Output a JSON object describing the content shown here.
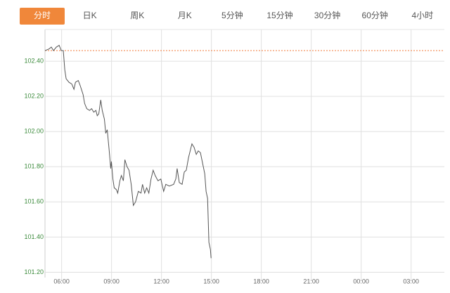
{
  "tabs": [
    "分时",
    "日K",
    "周K",
    "月K",
    "5分钟",
    "15分钟",
    "30分钟",
    "60分钟",
    "4小时"
  ],
  "active_tab": 0,
  "chart_data": {
    "type": "line",
    "color": "#555555",
    "x": [
      5.0,
      5.25,
      5.38,
      5.51,
      5.68,
      5.85,
      5.98,
      6.1,
      6.19,
      6.27,
      6.44,
      6.61,
      6.74,
      6.83,
      7.0,
      7.12,
      7.29,
      7.38,
      7.51,
      7.68,
      7.8,
      7.93,
      8.06,
      8.14,
      8.23,
      8.35,
      8.44,
      8.57,
      8.65,
      8.74,
      8.86,
      8.95,
      8.99,
      9.08,
      9.16,
      9.29,
      9.37,
      9.5,
      9.59,
      9.71,
      9.8,
      9.93,
      10.05,
      10.18,
      10.31,
      10.44,
      10.61,
      10.77,
      10.86,
      10.99,
      11.11,
      11.24,
      11.37,
      11.5,
      11.62,
      11.79,
      11.96,
      12.13,
      12.26,
      12.47,
      12.73,
      12.86,
      12.94,
      13.07,
      13.24,
      13.37,
      13.49,
      13.62,
      13.75,
      13.83,
      13.96,
      14.09,
      14.21,
      14.34,
      14.47,
      14.6,
      14.68,
      14.77,
      14.85,
      14.94,
      14.98
    ],
    "values": [
      102.46,
      102.47,
      102.48,
      102.46,
      102.48,
      102.49,
      102.46,
      102.46,
      102.35,
      102.3,
      102.28,
      102.27,
      102.24,
      102.28,
      102.29,
      102.26,
      102.21,
      102.16,
      102.13,
      102.12,
      102.13,
      102.11,
      102.12,
      102.09,
      102.1,
      102.18,
      102.12,
      102.07,
      101.99,
      102.01,
      101.89,
      101.79,
      101.83,
      101.73,
      101.68,
      101.67,
      101.65,
      101.72,
      101.75,
      101.72,
      101.84,
      101.8,
      101.78,
      101.7,
      101.58,
      101.6,
      101.66,
      101.65,
      101.7,
      101.65,
      101.68,
      101.65,
      101.73,
      101.78,
      101.75,
      101.72,
      101.73,
      101.66,
      101.7,
      101.69,
      101.7,
      101.73,
      101.79,
      101.71,
      101.7,
      101.77,
      101.78,
      101.85,
      101.9,
      101.93,
      101.91,
      101.87,
      101.89,
      101.88,
      101.82,
      101.76,
      101.66,
      101.62,
      101.37,
      101.33,
      101.28
    ],
    "reference_line": {
      "value": 102.46,
      "color": "#f07a3a"
    },
    "xlim": [
      5,
      29
    ],
    "xticks": [
      {
        "value": 6,
        "label": "06:00"
      },
      {
        "value": 9,
        "label": "09:00"
      },
      {
        "value": 12,
        "label": "12:00"
      },
      {
        "value": 15,
        "label": "15:00"
      },
      {
        "value": 18,
        "label": "18:00"
      },
      {
        "value": 21,
        "label": "21:00"
      },
      {
        "value": 24,
        "label": "00:00"
      },
      {
        "value": 27,
        "label": "03:00"
      }
    ],
    "ylim": [
      101.17,
      102.58
    ],
    "yticks": [
      {
        "value": 101.2,
        "label": "101.20"
      },
      {
        "value": 101.4,
        "label": "101.40"
      },
      {
        "value": 101.6,
        "label": "101.60"
      },
      {
        "value": 101.8,
        "label": "101.80"
      },
      {
        "value": 102.0,
        "label": "102.00"
      },
      {
        "value": 102.2,
        "label": "102.20"
      },
      {
        "value": 102.4,
        "label": "102.40"
      }
    ],
    "grid": true
  }
}
